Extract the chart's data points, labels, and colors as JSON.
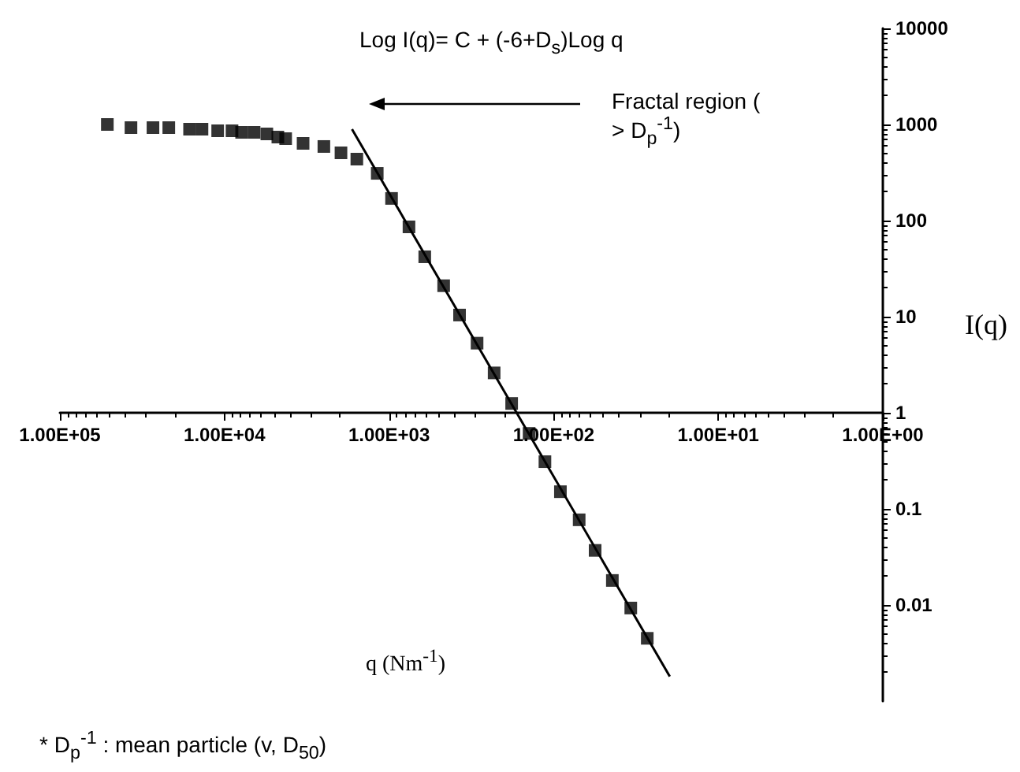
{
  "chart_data": {
    "type": "scatter",
    "xlabel": "q (Nm$^{-1}$)",
    "ylabel": "I(q)",
    "annotations": [
      "Log I(q)= C + (-6+D$_{s}$)Log q",
      "Fractal region ( > D$_{p}$$^{-1}$)",
      "* D$_{p}$$^{-1}$ : mean particle (v, D$_{50}$)"
    ],
    "series": [
      {
        "marker": "square",
        "color": "#000000",
        "x": [
          51500,
          37000,
          27200,
          21800,
          16300,
          13700,
          11000,
          9000,
          7870,
          6610,
          5530,
          4740,
          4250,
          3330,
          2490,
          1960,
          1570,
          1180,
          966,
          757,
          607,
          466,
          373,
          292,
          230,
          180,
          141,
          113,
          91,
          70,
          56,
          44,
          34,
          27
        ],
        "values": [
          1000,
          927,
          927,
          927,
          893,
          893,
          860,
          860,
          828,
          828,
          797,
          739,
          712,
          636,
          590,
          507,
          436,
          310,
          170,
          86,
          42,
          21,
          10.4,
          5.3,
          2.6,
          1.25,
          0.61,
          0.31,
          0.151,
          0.077,
          0.037,
          0.018,
          0.0093,
          0.0045
        ]
      },
      {
        "type": "line",
        "marker": "none",
        "color": "#000000",
        "x": [
          1680,
          19.7
        ],
        "values": [
          893,
          0.0018
        ]
      }
    ],
    "xlim": [
      100000,
      1
    ],
    "xticks": [
      {
        "value": 100000,
        "label": "1.00E+05"
      },
      {
        "value": 10000,
        "label": "1.00E+04"
      },
      {
        "value": 1000,
        "label": "1.00E+03"
      },
      {
        "value": 100,
        "label": "1.00E+02"
      },
      {
        "value": 10,
        "label": "1.00E+01"
      },
      {
        "value": 1,
        "label": "1.00E+00"
      }
    ],
    "ylim": [
      0.001,
      10000
    ],
    "yticks": [
      0.01,
      0.1,
      1,
      10,
      100,
      1000,
      10000
    ],
    "log": "xy"
  }
}
